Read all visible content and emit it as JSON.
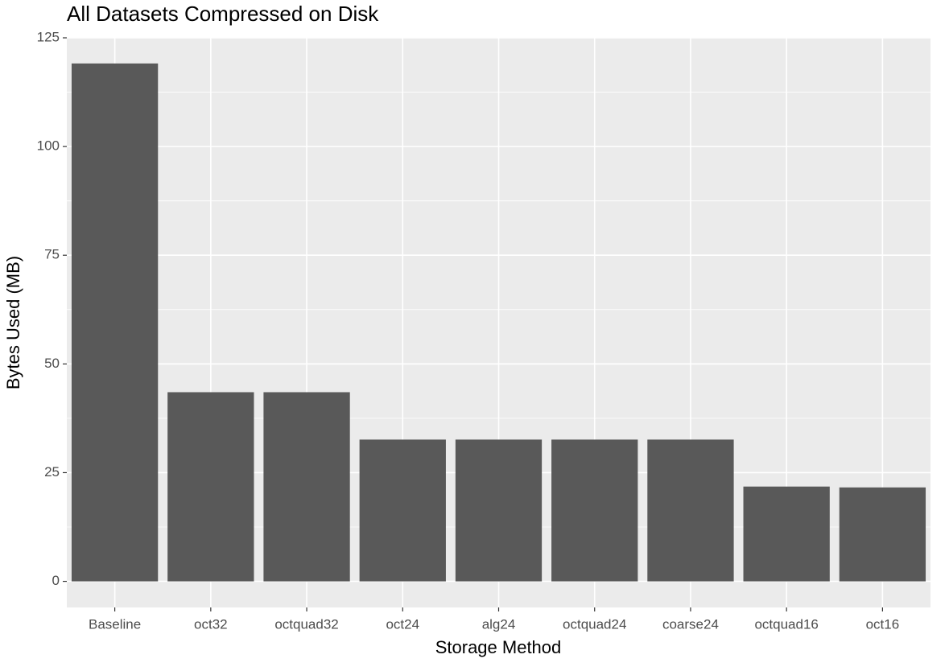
{
  "chart_data": {
    "type": "bar",
    "title": "All Datasets Compressed on Disk",
    "x_label": "Storage Method",
    "y_label": "Bytes Used (MB)",
    "categories": [
      "Baseline",
      "oct32",
      "octquad32",
      "oct24",
      "alg24",
      "octquad24",
      "coarse24",
      "octquad16",
      "oct16"
    ],
    "values": [
      119.1,
      43.5,
      43.5,
      32.6,
      32.6,
      32.6,
      32.6,
      21.8,
      21.6
    ],
    "color": "#595959",
    "ylim": [
      -6,
      125
    ],
    "yticks": [
      0,
      25,
      50,
      75,
      100,
      125
    ],
    "grid": true
  }
}
